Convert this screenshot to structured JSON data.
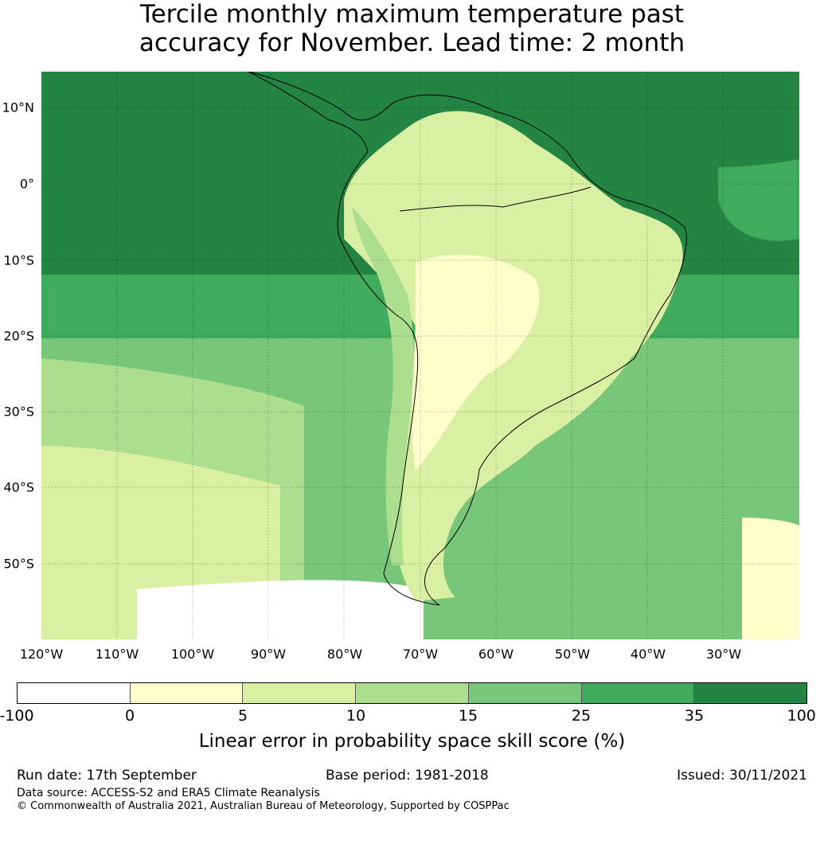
{
  "title_line1": "Tercile monthly maximum temperature past",
  "title_line2": "accuracy for November. Lead time: 2 month",
  "lat_labels": [
    "10°N",
    "0°",
    "10°S",
    "20°S",
    "30°S",
    "40°S",
    "50°S"
  ],
  "lon_labels": [
    "120°W",
    "110°W",
    "100°W",
    "90°W",
    "80°W",
    "70°W",
    "60°W",
    "50°W",
    "40°W",
    "30°W"
  ],
  "colorbar": {
    "colors": [
      "#ffffff",
      "#ffffcc",
      "#d9f0a3",
      "#addd8e",
      "#78c679",
      "#41ab5d",
      "#238443"
    ],
    "ticks": [
      "-100",
      "0",
      "5",
      "10",
      "15",
      "25",
      "35",
      "100"
    ],
    "label": "Linear error in probability space skill score (%)"
  },
  "footer": {
    "run_date": "Run date: 17th September",
    "base_period": "Base period: 1981-2018",
    "issued": "Issued: 30/11/2021",
    "data_source": "Data source: ACCESS-S2 and ERA5 Climate Reanalysis",
    "copyright": "© Commonwealth of Australia 2021, Australian Bureau of Meteorology, Supported by COSPPac"
  }
}
